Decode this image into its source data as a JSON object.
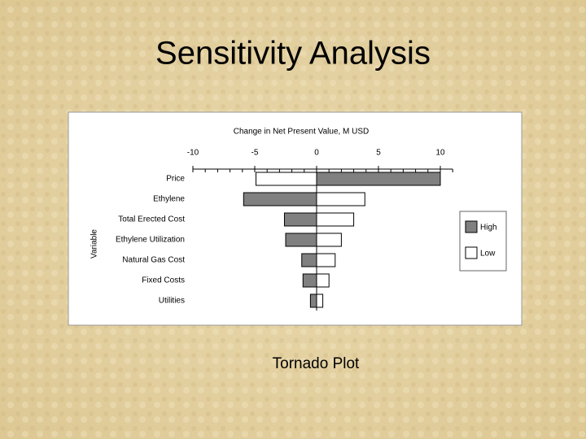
{
  "slide": {
    "title": "Sensitivity Analysis",
    "caption": "Tornado Plot"
  },
  "chart_data": {
    "type": "tornado",
    "title": "Change in Net Present Value, M USD",
    "y_label": "Variable",
    "categories": [
      "Price",
      "Ethylene",
      "Total Erected Cost",
      "Ethylene Utilization",
      "Natural Gas Cost",
      "Fixed Costs",
      "Utilities"
    ],
    "series": [
      {
        "name": "High",
        "color": "#808080",
        "values": [
          10.0,
          -5.9,
          -2.6,
          -2.5,
          -1.2,
          -1.1,
          -0.5
        ]
      },
      {
        "name": "Low",
        "color": "#ffffff",
        "values": [
          -4.9,
          3.9,
          3.0,
          2.0,
          1.5,
          1.0,
          0.5
        ]
      }
    ],
    "xlim": [
      -10,
      11
    ],
    "xticks": [
      -10,
      -5,
      0,
      5,
      10
    ],
    "xminorticks": [
      -10,
      -9,
      -8,
      -7,
      -6,
      -5,
      -4,
      -3,
      -2,
      -1,
      0,
      1,
      2,
      3,
      4,
      5,
      6,
      7,
      8,
      9,
      10,
      11
    ],
    "legend": "right"
  }
}
